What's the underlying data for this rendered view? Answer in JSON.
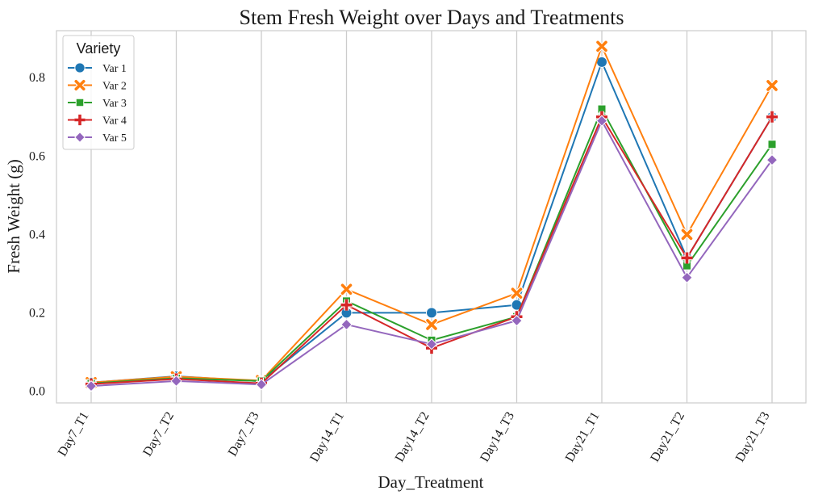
{
  "chart_data": {
    "type": "line",
    "title": "Stem Fresh Weight over Days and Treatments",
    "xlabel": "Day_Treatment",
    "ylabel": "Fresh Weight (g)",
    "categories": [
      "Day7_T1",
      "Day7_T2",
      "Day7_T3",
      "Day14_T1",
      "Day14_T2",
      "Day14_T3",
      "Day21_T1",
      "Day21_T2",
      "Day21_T3"
    ],
    "ylim": [
      -0.03,
      0.92
    ],
    "yticks": [
      0.0,
      0.2,
      0.4,
      0.6,
      0.8
    ],
    "ytick_labels": [
      "0.0",
      "0.2",
      "0.4",
      "0.6",
      "0.8"
    ],
    "grid": "vertical",
    "legend": {
      "title": "Variety",
      "placement": "top-left"
    },
    "series": [
      {
        "name": "Var 1",
        "color": "#1f77b4",
        "marker": "circle",
        "values": [
          0.022,
          0.038,
          0.025,
          0.2,
          0.2,
          0.22,
          0.84,
          0.34,
          0.7
        ]
      },
      {
        "name": "Var 2",
        "color": "#ff7f0e",
        "marker": "x",
        "values": [
          0.022,
          0.037,
          0.027,
          0.26,
          0.17,
          0.25,
          0.88,
          0.4,
          0.78
        ]
      },
      {
        "name": "Var 3",
        "color": "#2ca02c",
        "marker": "square",
        "values": [
          0.02,
          0.033,
          0.026,
          0.23,
          0.13,
          0.19,
          0.72,
          0.32,
          0.63
        ]
      },
      {
        "name": "Var 4",
        "color": "#d62728",
        "marker": "plus",
        "values": [
          0.018,
          0.031,
          0.02,
          0.22,
          0.11,
          0.19,
          0.7,
          0.34,
          0.7
        ]
      },
      {
        "name": "Var 5",
        "color": "#9467bd",
        "marker": "diamond",
        "values": [
          0.013,
          0.026,
          0.017,
          0.17,
          0.12,
          0.18,
          0.69,
          0.29,
          0.59
        ]
      }
    ]
  }
}
